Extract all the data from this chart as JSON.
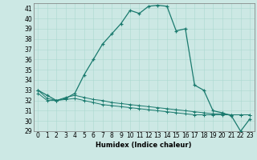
{
  "xlabel": "Humidex (Indice chaleur)",
  "background_color": "#cce8e4",
  "line_color": "#1a7a6e",
  "xlim": [
    -0.5,
    23.5
  ],
  "ylim": [
    29,
    41.5
  ],
  "yticks": [
    29,
    30,
    31,
    32,
    33,
    34,
    35,
    36,
    37,
    38,
    39,
    40,
    41
  ],
  "xticks": [
    0,
    1,
    2,
    3,
    4,
    5,
    6,
    7,
    8,
    9,
    10,
    11,
    12,
    13,
    14,
    15,
    16,
    17,
    18,
    19,
    20,
    21,
    22,
    23
  ],
  "series1": [
    33.0,
    32.5,
    32.0,
    32.2,
    32.7,
    34.5,
    36.0,
    37.5,
    38.5,
    39.5,
    40.8,
    40.5,
    41.2,
    41.3,
    41.2,
    38.8,
    39.0,
    33.5,
    33.0,
    31.0,
    30.8,
    30.5,
    29.0,
    30.2
  ],
  "series2": [
    33.0,
    32.2,
    32.0,
    32.3,
    32.5,
    32.3,
    32.1,
    32.0,
    31.8,
    31.7,
    31.6,
    31.5,
    31.4,
    31.3,
    31.2,
    31.1,
    31.0,
    30.9,
    30.8,
    30.7,
    30.7,
    30.6,
    30.6,
    30.6
  ],
  "series3": [
    32.7,
    32.0,
    32.0,
    32.1,
    32.2,
    32.0,
    31.8,
    31.6,
    31.5,
    31.4,
    31.3,
    31.2,
    31.1,
    31.0,
    30.9,
    30.8,
    30.7,
    30.6,
    30.6,
    30.6,
    30.6,
    30.6,
    30.6,
    30.6
  ],
  "tick_fontsize": 5.5,
  "xlabel_fontsize": 6.0,
  "grid_color": "#aad8d0",
  "grid_linewidth": 0.4
}
